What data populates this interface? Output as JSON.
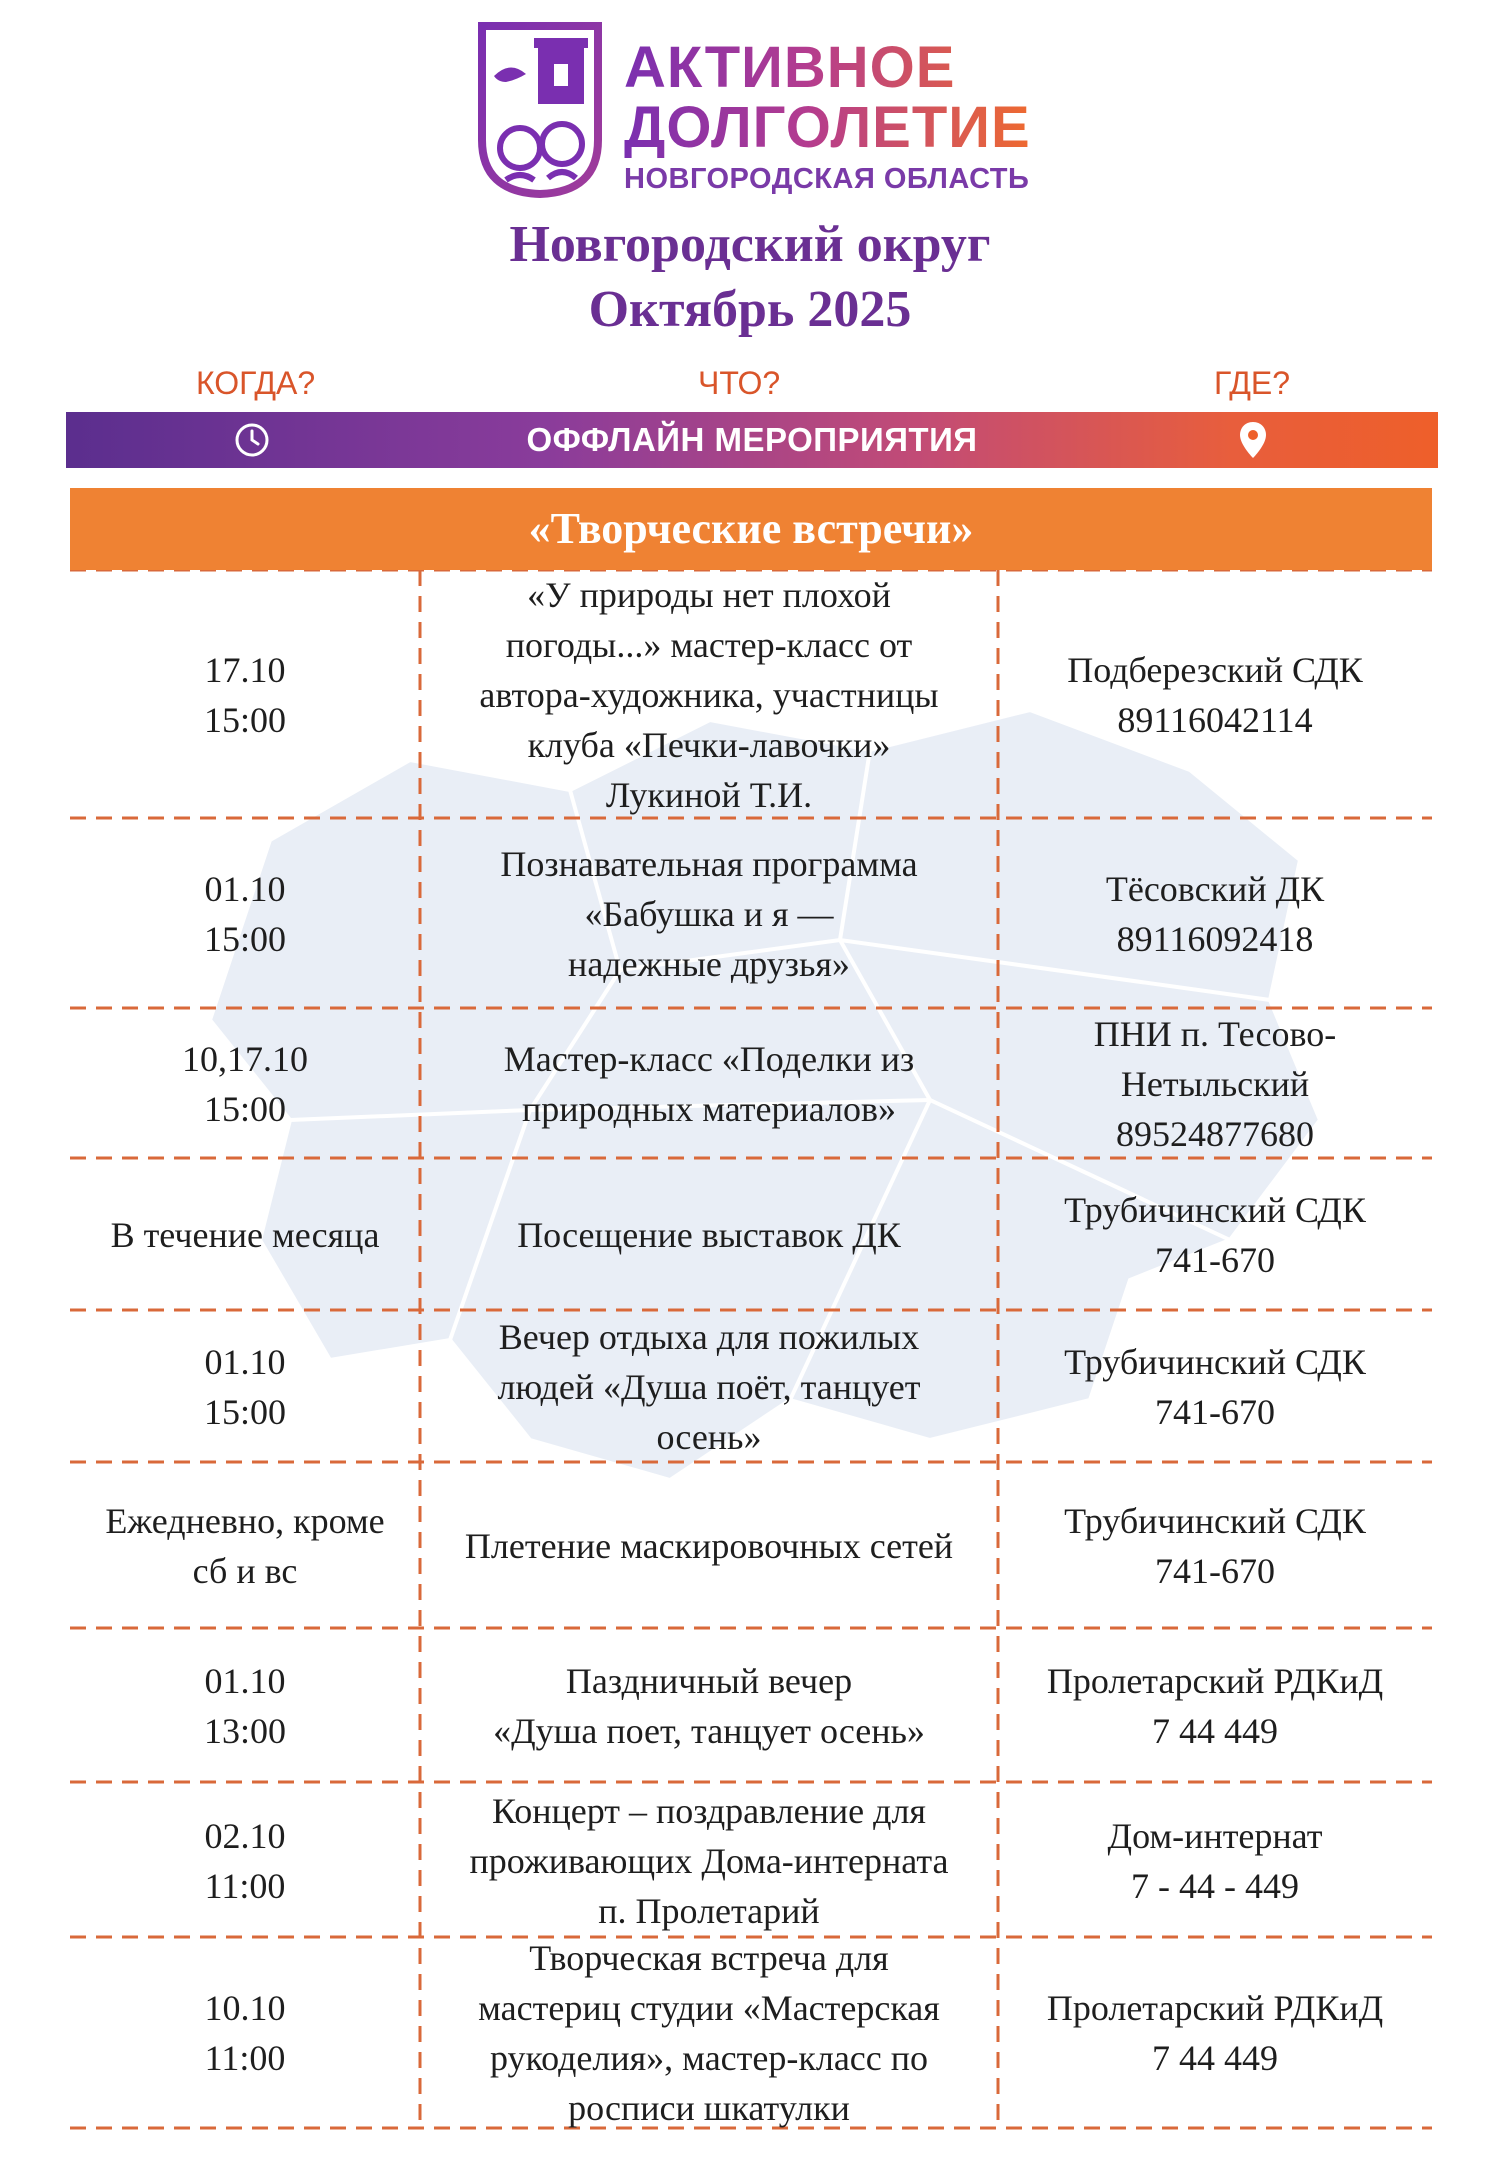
{
  "logo": {
    "line1": "АКТИВНОЕ",
    "line2": "ДОЛГОЛЕТИЕ",
    "line3": "НОВГОРОДСКАЯ ОБЛАСТЬ",
    "colors": {
      "purple": "#7a2fb0",
      "orange": "#ee6a30"
    }
  },
  "title": {
    "line1": "Новгородский округ",
    "line2": "Октябрь 2025",
    "color": "#6a2f93"
  },
  "columns": {
    "when": "КОГДА?",
    "what": "ЧТО?",
    "where": "ГДЕ?"
  },
  "bar": {
    "label": "ОФФЛАЙН МЕРОПРИЯТИЯ",
    "left_icon": "clock-icon",
    "right_icon": "location-pin-icon"
  },
  "section": {
    "title": "«Творческие встречи»",
    "color": "#ef8233"
  },
  "events": [
    {
      "when": "17.10\n15:00",
      "what": "«У природы нет плохой\nпогоды...» мастер-класс от\nавтора-художника, участницы\nклуба «Печки-лавочки»\nЛукиной Т.И.",
      "where": "Подберезский СДК\n89116042114"
    },
    {
      "when": "01.10\n15:00",
      "what": "Познавательная программа\n«Бабушка и я —\nнадежные друзья»",
      "where": "Тёсовский ДК\n89116092418"
    },
    {
      "when": "10,17.10\n15:00",
      "what": "Мастер-класс «Поделки из\nприродных материалов»",
      "where": "ПНИ п. Тесово-\nНетыльский\n89524877680"
    },
    {
      "when": "В течение месяца",
      "what": "Посещение выставок ДК",
      "where": "Трубичинский СДК\n741-670"
    },
    {
      "when": "01.10\n15:00",
      "what": "Вечер отдыха для пожилых\nлюдей «Душа поёт, танцует\nосень»",
      "where": "Трубичинский СДК\n741-670"
    },
    {
      "when": "Ежедневно, кроме\nсб и вс",
      "what": "Плетение маскировочных сетей",
      "where": "Трубичинский СДК\n741-670"
    },
    {
      "when": "01.10\n13:00",
      "what": "Паздничный вечер\n«Душа поет, танцует осень»",
      "where": "Пролетарский РДКиД\n7 44 449"
    },
    {
      "when": "02.10\n11:00",
      "what": "Концерт – поздравление для\nпроживающих Дома-интерната\nп. Пролетарий",
      "where": "Дом-интернат\n7 - 44 - 449"
    },
    {
      "when": "10.10\n11:00",
      "what": "Творческая встреча для\nмастериц студии «Мастерская\nрукоделия», мастер-класс по\nросписи шкатулки",
      "where": "Пролетарский РДКиД\n7 44 449"
    }
  ]
}
